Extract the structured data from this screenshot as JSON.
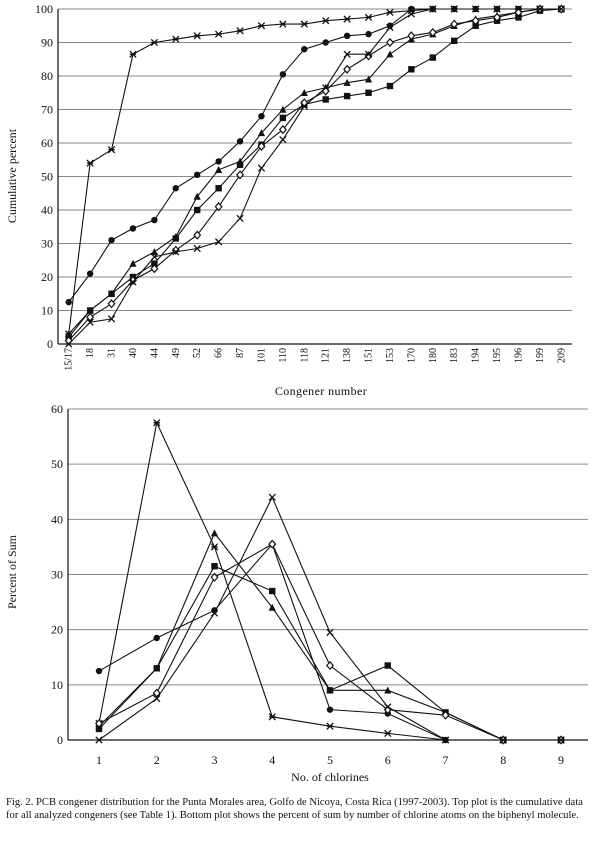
{
  "chart_data": [
    {
      "type": "line",
      "title": "",
      "xlabel": "Congener number",
      "ylabel": "Cumulative percent",
      "categories": [
        "15/17",
        "18",
        "31",
        "40",
        "44",
        "49",
        "52",
        "66",
        "87",
        "101",
        "110",
        "118",
        "121",
        "138",
        "151",
        "153",
        "170",
        "180",
        "183",
        "194",
        "195",
        "196",
        "199",
        "209"
      ],
      "ylim": [
        0,
        100
      ],
      "yticks": [
        0,
        10,
        20,
        30,
        40,
        50,
        60,
        70,
        80,
        90,
        100
      ],
      "grid": "horizontal",
      "series": [
        {
          "marker": "circle",
          "values": [
            12.5,
            21,
            31,
            34.5,
            37,
            46.5,
            50.5,
            54.5,
            60.5,
            68,
            80.5,
            88,
            90,
            92,
            92.5,
            95,
            100,
            100,
            100,
            100,
            100,
            100,
            100,
            100
          ]
        },
        {
          "marker": "x",
          "values": [
            3,
            54,
            58,
            86.5,
            90,
            91,
            92,
            92.5,
            93.5,
            95,
            95.5,
            95.5,
            96.5,
            97,
            97.5,
            99,
            99.5,
            100,
            100,
            100,
            100,
            100,
            100,
            100
          ]
        },
        {
          "marker": "triangle",
          "values": [
            3,
            10,
            15,
            24,
            27.5,
            32,
            44,
            52,
            54.5,
            63,
            70,
            75,
            76.5,
            78,
            79,
            86.5,
            91,
            92.5,
            95,
            97,
            98,
            99,
            100,
            100
          ]
        },
        {
          "marker": "square",
          "values": [
            2,
            10,
            15,
            20,
            24,
            31.5,
            40,
            46.5,
            53.5,
            59.5,
            67.5,
            71.5,
            73,
            74,
            75,
            77,
            82,
            85.5,
            90.5,
            95,
            96.5,
            97.5,
            99.5,
            100
          ]
        },
        {
          "marker": "diamond",
          "values": [
            1,
            8,
            12,
            19,
            22.5,
            28,
            32.5,
            41,
            50.5,
            59,
            64,
            72,
            75.5,
            82,
            86,
            90,
            92,
            93,
            95.5,
            96.5,
            97.5,
            99,
            100,
            100
          ]
        },
        {
          "marker": "cross",
          "values": [
            0,
            6.5,
            7.5,
            18.5,
            26,
            27.5,
            28.5,
            30.5,
            37.5,
            52.5,
            61,
            71,
            76.5,
            86.5,
            86.5,
            94.5,
            98.5,
            100,
            100,
            100,
            100,
            100,
            100,
            100
          ]
        }
      ]
    },
    {
      "type": "line",
      "title": "",
      "xlabel": "No. of chlorines",
      "ylabel": "Percent of Sum",
      "x": [
        1,
        2,
        3,
        4,
        5,
        6,
        7,
        8,
        9
      ],
      "xlim": [
        1,
        9
      ],
      "ylim": [
        0,
        60
      ],
      "yticks": [
        0,
        10,
        20,
        30,
        40,
        50,
        60
      ],
      "grid": "horizontal",
      "series": [
        {
          "marker": "circle",
          "x": [
            1,
            2,
            3,
            4,
            5,
            6,
            7,
            8,
            9
          ],
          "values": [
            12.5,
            18.5,
            23.5,
            35.5,
            5.5,
            4.8,
            0,
            0,
            0
          ]
        },
        {
          "marker": "x",
          "x": [
            1,
            2,
            3,
            4,
            5,
            6,
            7,
            8,
            9
          ],
          "values": [
            3,
            57.5,
            35,
            4.2,
            2.5,
            1.2,
            0,
            0,
            0
          ]
        },
        {
          "marker": "triangle",
          "x": [
            1,
            2,
            3,
            4,
            5,
            6,
            7,
            8,
            9
          ],
          "values": [
            2.5,
            13,
            37.5,
            24,
            9,
            9,
            5,
            0,
            0
          ]
        },
        {
          "marker": "square",
          "x": [
            1,
            2,
            3,
            4,
            5,
            6,
            7,
            8,
            9
          ],
          "values": [
            2,
            13,
            31.5,
            27,
            9,
            13.5,
            5,
            0,
            0
          ]
        },
        {
          "marker": "diamond",
          "x": [
            1,
            2,
            3,
            4,
            5,
            6,
            7,
            8,
            9
          ],
          "values": [
            3,
            8.5,
            29.5,
            35.5,
            13.5,
            5.5,
            4.5,
            0,
            0
          ]
        },
        {
          "marker": "cross",
          "x": [
            1,
            2,
            3,
            4,
            5,
            6,
            7,
            8,
            9
          ],
          "values": [
            0,
            7.5,
            23,
            44,
            19.5,
            6,
            0,
            0,
            0
          ]
        }
      ]
    }
  ],
  "caption": "Fig. 2.  PCB congener distribution for the Punta Morales area, Golfo de Nicoya, Costa Rica (1997-2003).  Top plot is the cumulative data for all analyzed congeners (see Table 1).  Bottom plot shows the percent of sum by number of chlorine atoms on the biphenyl molecule."
}
